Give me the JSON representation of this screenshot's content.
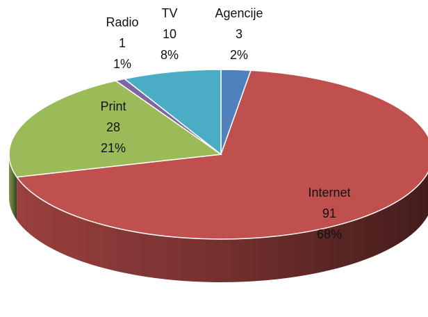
{
  "chart_data": {
    "type": "pie3d",
    "categories": [
      "Agencije",
      "Internet",
      "Print",
      "Radio",
      "TV"
    ],
    "values": [
      3,
      91,
      28,
      1,
      10
    ],
    "value_labels": [
      "2%",
      "68%",
      "21%",
      "1%",
      "8%"
    ],
    "colors": [
      "#4f81bd",
      "#c0504d",
      "#9bbb59",
      "#8064a2",
      "#4bacc6"
    ]
  }
}
